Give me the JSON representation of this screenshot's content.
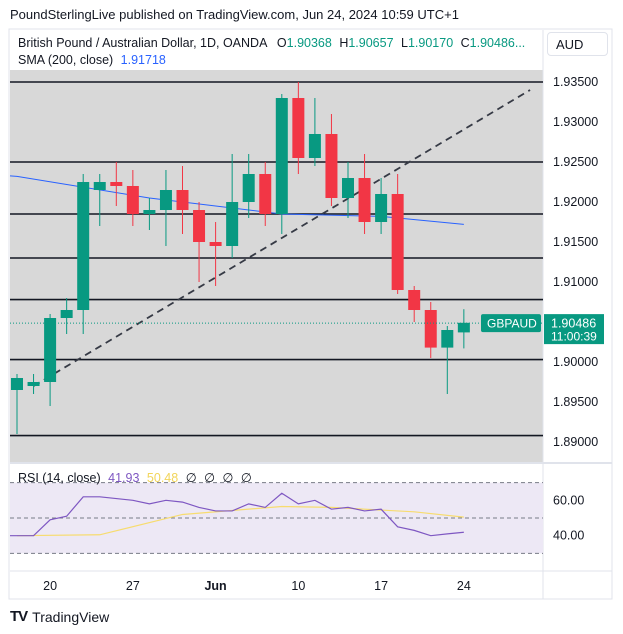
{
  "header": {
    "publish_line": "PoundSterlingLive published on TradingView.com, Jun 24, 2024 10:59 UTC+1"
  },
  "legend": {
    "symbol": "British Pound / Australian Dollar, 1D, OANDA",
    "o_label": "O",
    "o_value": "1.90368",
    "h_label": "H",
    "h_value": "1.90657",
    "l_label": "L",
    "l_value": "1.90170",
    "c_label": "C",
    "c_value": "1.90486...",
    "sma_label": "SMA (200, close)",
    "sma_value": "1.91718"
  },
  "rsi_legend": {
    "label": "RSI (14, close)",
    "rsi_value": "41.93",
    "ma_value": "50.48",
    "placeholders": [
      "∅",
      "∅",
      "∅",
      "∅"
    ]
  },
  "currency_button": "AUD",
  "price_tag": {
    "symbol": "GBPAUD",
    "price": "1.90486",
    "countdown": "11:00:39"
  },
  "footer": {
    "logo": "TV",
    "brand": "TradingView"
  },
  "colors": {
    "up": "#089981",
    "down": "#f23645",
    "sma": "#2962ff",
    "rsi": "#7e57c2",
    "rsi_ma": "#f7dc6f",
    "price_bg": "#d8d8d8",
    "rsi_bg": "#ede8f5"
  },
  "chart_data": [
    {
      "type": "candlestick",
      "title": "British Pound / Australian Dollar, 1D, OANDA",
      "y_ticks": [
        "1.93500",
        "1.93000",
        "1.92500",
        "1.92000",
        "1.91500",
        "1.91000",
        "1.90500",
        "1.90000",
        "1.89500",
        "1.89000"
      ],
      "ylim": [
        1.8875,
        1.9365
      ],
      "x_ticks": [
        {
          "index": 2,
          "label": "20"
        },
        {
          "index": 7,
          "label": "27"
        },
        {
          "index": 12,
          "label": "Jun"
        },
        {
          "index": 17,
          "label": "10"
        },
        {
          "index": 22,
          "label": "17"
        },
        {
          "index": 27,
          "label": "24"
        }
      ],
      "candles": [
        {
          "o": 1.8965,
          "h": 1.8985,
          "l": 1.891,
          "c": 1.898
        },
        {
          "o": 1.897,
          "h": 1.8985,
          "l": 1.896,
          "c": 1.8975
        },
        {
          "o": 1.8975,
          "h": 1.906,
          "l": 1.8945,
          "c": 1.9055
        },
        {
          "o": 1.9055,
          "h": 1.908,
          "l": 1.9035,
          "c": 1.9065
        },
        {
          "o": 1.9065,
          "h": 1.9235,
          "l": 1.9035,
          "c": 1.9225
        },
        {
          "o": 1.9215,
          "h": 1.9235,
          "l": 1.917,
          "c": 1.9225
        },
        {
          "o": 1.9225,
          "h": 1.925,
          "l": 1.9195,
          "c": 1.922
        },
        {
          "o": 1.922,
          "h": 1.924,
          "l": 1.917,
          "c": 1.9185
        },
        {
          "o": 1.9185,
          "h": 1.9205,
          "l": 1.9165,
          "c": 1.919
        },
        {
          "o": 1.919,
          "h": 1.924,
          "l": 1.9145,
          "c": 1.9215
        },
        {
          "o": 1.9215,
          "h": 1.9245,
          "l": 1.916,
          "c": 1.919
        },
        {
          "o": 1.919,
          "h": 1.92,
          "l": 1.91,
          "c": 1.915
        },
        {
          "o": 1.915,
          "h": 1.9175,
          "l": 1.9095,
          "c": 1.9145
        },
        {
          "o": 1.9145,
          "h": 1.926,
          "l": 1.913,
          "c": 1.92
        },
        {
          "o": 1.92,
          "h": 1.926,
          "l": 1.918,
          "c": 1.9235
        },
        {
          "o": 1.9235,
          "h": 1.925,
          "l": 1.917,
          "c": 1.9185
        },
        {
          "o": 1.9185,
          "h": 1.9335,
          "l": 1.916,
          "c": 1.933
        },
        {
          "o": 1.933,
          "h": 1.935,
          "l": 1.9235,
          "c": 1.9255
        },
        {
          "o": 1.9255,
          "h": 1.933,
          "l": 1.9245,
          "c": 1.9285
        },
        {
          "o": 1.9285,
          "h": 1.931,
          "l": 1.9195,
          "c": 1.9205
        },
        {
          "o": 1.9205,
          "h": 1.925,
          "l": 1.918,
          "c": 1.923
        },
        {
          "o": 1.923,
          "h": 1.926,
          "l": 1.916,
          "c": 1.9175
        },
        {
          "o": 1.9175,
          "h": 1.923,
          "l": 1.916,
          "c": 1.921
        },
        {
          "o": 1.921,
          "h": 1.9235,
          "l": 1.9085,
          "c": 1.909
        },
        {
          "o": 1.909,
          "h": 1.9095,
          "l": 1.905,
          "c": 1.9065
        },
        {
          "o": 1.9065,
          "h": 1.9075,
          "l": 1.9005,
          "c": 1.9018
        },
        {
          "o": 1.9018,
          "h": 1.9045,
          "l": 1.896,
          "c": 1.904
        },
        {
          "o": 1.9037,
          "h": 1.9066,
          "l": 1.9017,
          "c": 1.9049
        }
      ],
      "sma_200": [
        {
          "index": 0,
          "value": 1.9232
        },
        {
          "index": 8,
          "value": 1.9205
        },
        {
          "index": 16,
          "value": 1.9185
        },
        {
          "index": 22,
          "value": 1.9182
        },
        {
          "index": 27,
          "value": 1.9172
        }
      ],
      "horizontal_lines": [
        1.935,
        1.925,
        1.9185,
        1.913,
        1.9078,
        1.9003,
        1.8908
      ],
      "trend_line": {
        "from": {
          "index": 1,
          "value": 1.897
        },
        "to": {
          "index": 31,
          "value": 1.934
        }
      },
      "current_price": 1.90486
    },
    {
      "type": "line",
      "title": "RSI (14, close)",
      "y_ticks": [
        "60.00",
        "40.00"
      ],
      "ylim": [
        20,
        80
      ],
      "rsi": [
        40,
        40,
        49,
        51,
        62,
        62,
        61,
        60,
        58,
        60,
        59,
        56,
        54,
        54,
        58,
        56,
        64,
        58,
        60,
        55,
        56,
        54,
        55,
        45,
        43,
        40,
        41,
        41.93
      ],
      "rsi_ma": [
        {
          "index": 0,
          "value": 40
        },
        {
          "index": 5,
          "value": 40.5
        },
        {
          "index": 10,
          "value": 52
        },
        {
          "index": 16,
          "value": 56.5
        },
        {
          "index": 19,
          "value": 56
        },
        {
          "index": 24,
          "value": 53.5
        },
        {
          "index": 27,
          "value": 50.48
        }
      ]
    }
  ]
}
